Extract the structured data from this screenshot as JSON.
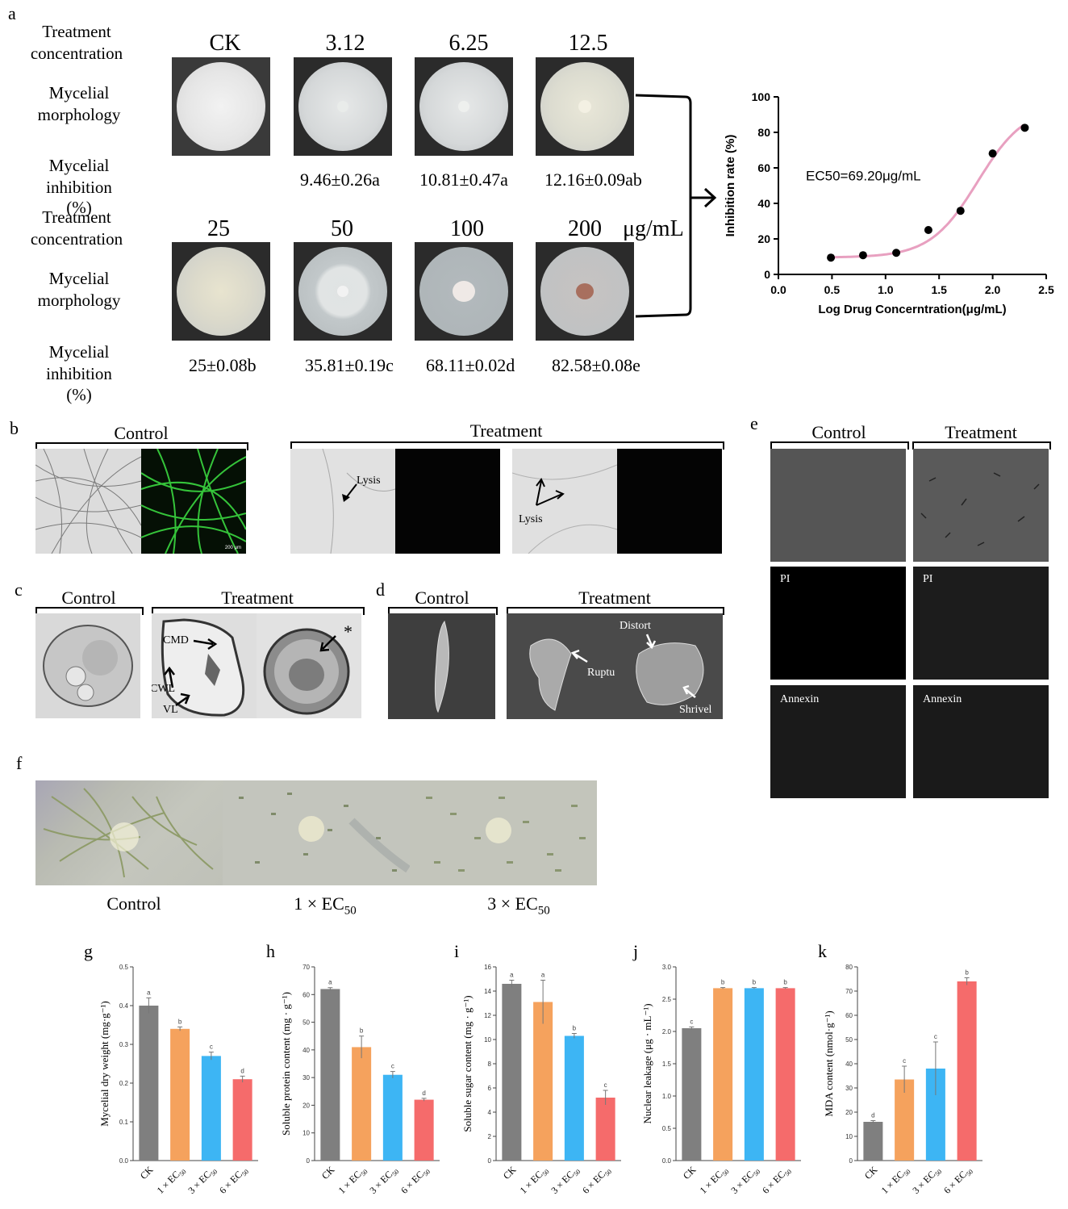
{
  "panel_letters": {
    "a": "a",
    "b": "b",
    "c": "c",
    "d": "d",
    "e": "e",
    "f": "f",
    "g": "g",
    "h": "h",
    "i": "i",
    "j": "j",
    "k": "k"
  },
  "panel_a": {
    "row_labels": {
      "treatment_concentration": "Treatment concentration",
      "mycelial_morphology": "Mycelial morphology",
      "mycelial_inhibition": "Mycelial inhibition",
      "percent": "(%)"
    },
    "concentrations_row1": [
      "CK",
      "3.12",
      "6.25",
      "12.5"
    ],
    "concentrations_row2": [
      "25",
      "50",
      "100",
      "200"
    ],
    "unit": "μg/mL",
    "inhibition_row1": [
      "9.46±0.26a",
      "10.81±0.47a",
      "12.16±0.09ab"
    ],
    "inhibition_row2": [
      "25±0.08b",
      "35.81±0.19c",
      "68.11±0.02d",
      "82.58±0.08e"
    ]
  },
  "panel_b": {
    "control": "Control",
    "treatment": "Treatment",
    "lysis": "Lysis",
    "scale": "200 μm"
  },
  "panel_c": {
    "control": "Control",
    "treatment": "Treatment",
    "cmd": "CMD",
    "cwl": "CWL",
    "vl": "VL",
    "star": "*"
  },
  "panel_d": {
    "control": "Control",
    "treatment": "Treatment",
    "distort": "Distort",
    "rupture": "Rupture",
    "shrivel": "Shrivel"
  },
  "panel_e": {
    "control": "Control",
    "treatment": "Treatment",
    "pi": "PI",
    "annexin": "Annexin"
  },
  "panel_f": {
    "control": "Control",
    "ec1": "1 × EC",
    "ec3": "3 × EC",
    "sub": "50"
  },
  "chart_data": [
    {
      "type": "scatter",
      "title": "",
      "xlabel": "Log Drug Concerntration(μg/mL)",
      "ylabel": "Inhibition rate (%)",
      "xlim": [
        0.0,
        2.5
      ],
      "ylim": [
        0,
        100
      ],
      "xticks": [
        "0.0",
        "0.5",
        "1.0",
        "1.5",
        "2.0",
        "2.5"
      ],
      "yticks": [
        "0",
        "20",
        "40",
        "60",
        "80",
        "100"
      ],
      "annotation": "EC50=69.20μg/mL",
      "x": [
        0.49,
        0.79,
        1.1,
        1.4,
        1.7,
        2.0,
        2.3
      ],
      "y": [
        9.46,
        10.81,
        12.16,
        25.0,
        35.81,
        68.11,
        82.58
      ],
      "fit": "sigmoid",
      "fit_color": "#e8a0c0",
      "point_color": "#000000"
    },
    {
      "type": "bar",
      "panel": "g",
      "ylabel": "Mycelial dry weight (mg·g⁻¹)",
      "categories": [
        "CK",
        "1 × EC50",
        "3 × EC50",
        "6 × EC50"
      ],
      "values": [
        0.4,
        0.34,
        0.27,
        0.21
      ],
      "errors": [
        0.02,
        0.005,
        0.01,
        0.008
      ],
      "letters": [
        "a",
        "b",
        "c",
        "d"
      ],
      "ylim": [
        0,
        0.5
      ],
      "yticks": [
        "0.0",
        "0.1",
        "0.2",
        "0.3",
        "0.4",
        "0.5"
      ]
    },
    {
      "type": "bar",
      "panel": "h",
      "ylabel": "Soluble protein content (mg · g⁻¹)",
      "categories": [
        "CK",
        "1 × EC50",
        "3 × EC50",
        "6 × EC50"
      ],
      "values": [
        62,
        41,
        31,
        22
      ],
      "errors": [
        0.5,
        4,
        1.2,
        0.5
      ],
      "letters": [
        "a",
        "b",
        "c",
        "d"
      ],
      "ylim": [
        0,
        70
      ],
      "yticks": [
        "0",
        "10",
        "20",
        "30",
        "40",
        "50",
        "60",
        "70"
      ]
    },
    {
      "type": "bar",
      "panel": "i",
      "ylabel": "Soluble sugar content (mg · g⁻¹)",
      "categories": [
        "CK",
        "1 × EC50",
        "3 × EC50",
        "6 × EC50"
      ],
      "values": [
        14.6,
        13.1,
        10.3,
        5.2
      ],
      "errors": [
        0.3,
        1.8,
        0.2,
        0.6
      ],
      "letters": [
        "a",
        "a",
        "b",
        "c"
      ],
      "ylim": [
        0,
        16
      ],
      "yticks": [
        "0",
        "2",
        "4",
        "6",
        "8",
        "10",
        "12",
        "14",
        "16"
      ]
    },
    {
      "type": "bar",
      "panel": "j",
      "ylabel": "Nuclear leakage (μg · mL⁻¹)",
      "categories": [
        "CK",
        "1 × EC50",
        "3 × EC50",
        "6 × EC50"
      ],
      "values": [
        2.05,
        2.67,
        2.67,
        2.67
      ],
      "errors": [
        0.02,
        0.01,
        0.01,
        0.01
      ],
      "letters": [
        "c",
        "b",
        "b",
        "b"
      ],
      "ylim": [
        0,
        3.0
      ],
      "yticks": [
        "0.0",
        "0.5",
        "1.0",
        "1.5",
        "2.0",
        "2.5",
        "3.0"
      ]
    },
    {
      "type": "bar",
      "panel": "k",
      "ylabel": "MDA content (nmol·g⁻¹)",
      "categories": [
        "CK",
        "1 × EC50",
        "3 × EC50",
        "6 × EC50"
      ],
      "values": [
        16,
        33.5,
        38,
        74
      ],
      "errors": [
        0.5,
        5.5,
        11,
        1.5
      ],
      "letters": [
        "d",
        "c",
        "c",
        "b"
      ],
      "ylim": [
        0,
        80
      ],
      "yticks": [
        "0",
        "10",
        "20",
        "30",
        "40",
        "50",
        "60",
        "70",
        "80"
      ]
    }
  ],
  "bar_colors": [
    "#7f7f7f",
    "#f5a25d",
    "#3db5f4",
    "#f56b6b"
  ]
}
